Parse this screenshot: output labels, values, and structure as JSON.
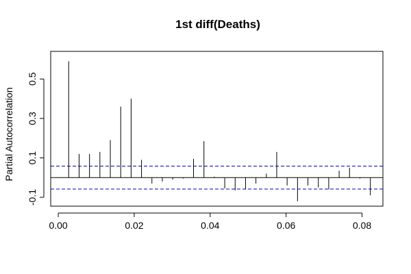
{
  "chart_data": {
    "type": "bar",
    "title": "1st diff(Deaths)",
    "xlabel": "",
    "ylabel": "Partial Autocorrelation",
    "xlim": [
      -0.002,
      0.0855
    ],
    "ylim": [
      -0.145,
      0.64
    ],
    "x_ticks": [
      0.0,
      0.02,
      0.04,
      0.06,
      0.08
    ],
    "x_tick_labels": [
      "0.00",
      "0.02",
      "0.04",
      "0.06",
      "0.08"
    ],
    "y_ticks": [
      -0.1,
      0.1,
      0.3,
      0.5
    ],
    "y_tick_labels": [
      "-0.1",
      "0.1",
      "0.3",
      "0.5"
    ],
    "ci_bounds": [
      0.058,
      -0.058
    ],
    "ci_color": "#0000cc",
    "grid": false,
    "legend": "none",
    "lags": [
      0.00274,
      0.00548,
      0.00822,
      0.01096,
      0.0137,
      0.01644,
      0.01918,
      0.02192,
      0.02466,
      0.0274,
      0.03014,
      0.03288,
      0.03562,
      0.03836,
      0.0411,
      0.04384,
      0.04658,
      0.04932,
      0.05205,
      0.05479,
      0.05753,
      0.06027,
      0.06301,
      0.06575,
      0.06849,
      0.07123,
      0.07397,
      0.07671,
      0.07945,
      0.08219
    ],
    "values": [
      0.59,
      0.12,
      0.12,
      0.13,
      0.19,
      0.36,
      0.4,
      0.09,
      -0.03,
      -0.02,
      -0.01,
      -0.005,
      0.095,
      0.185,
      0.005,
      -0.055,
      -0.065,
      -0.06,
      -0.03,
      0.02,
      0.13,
      -0.04,
      -0.12,
      -0.04,
      -0.05,
      -0.06,
      0.035,
      0.05,
      -0.005,
      -0.09
    ]
  }
}
